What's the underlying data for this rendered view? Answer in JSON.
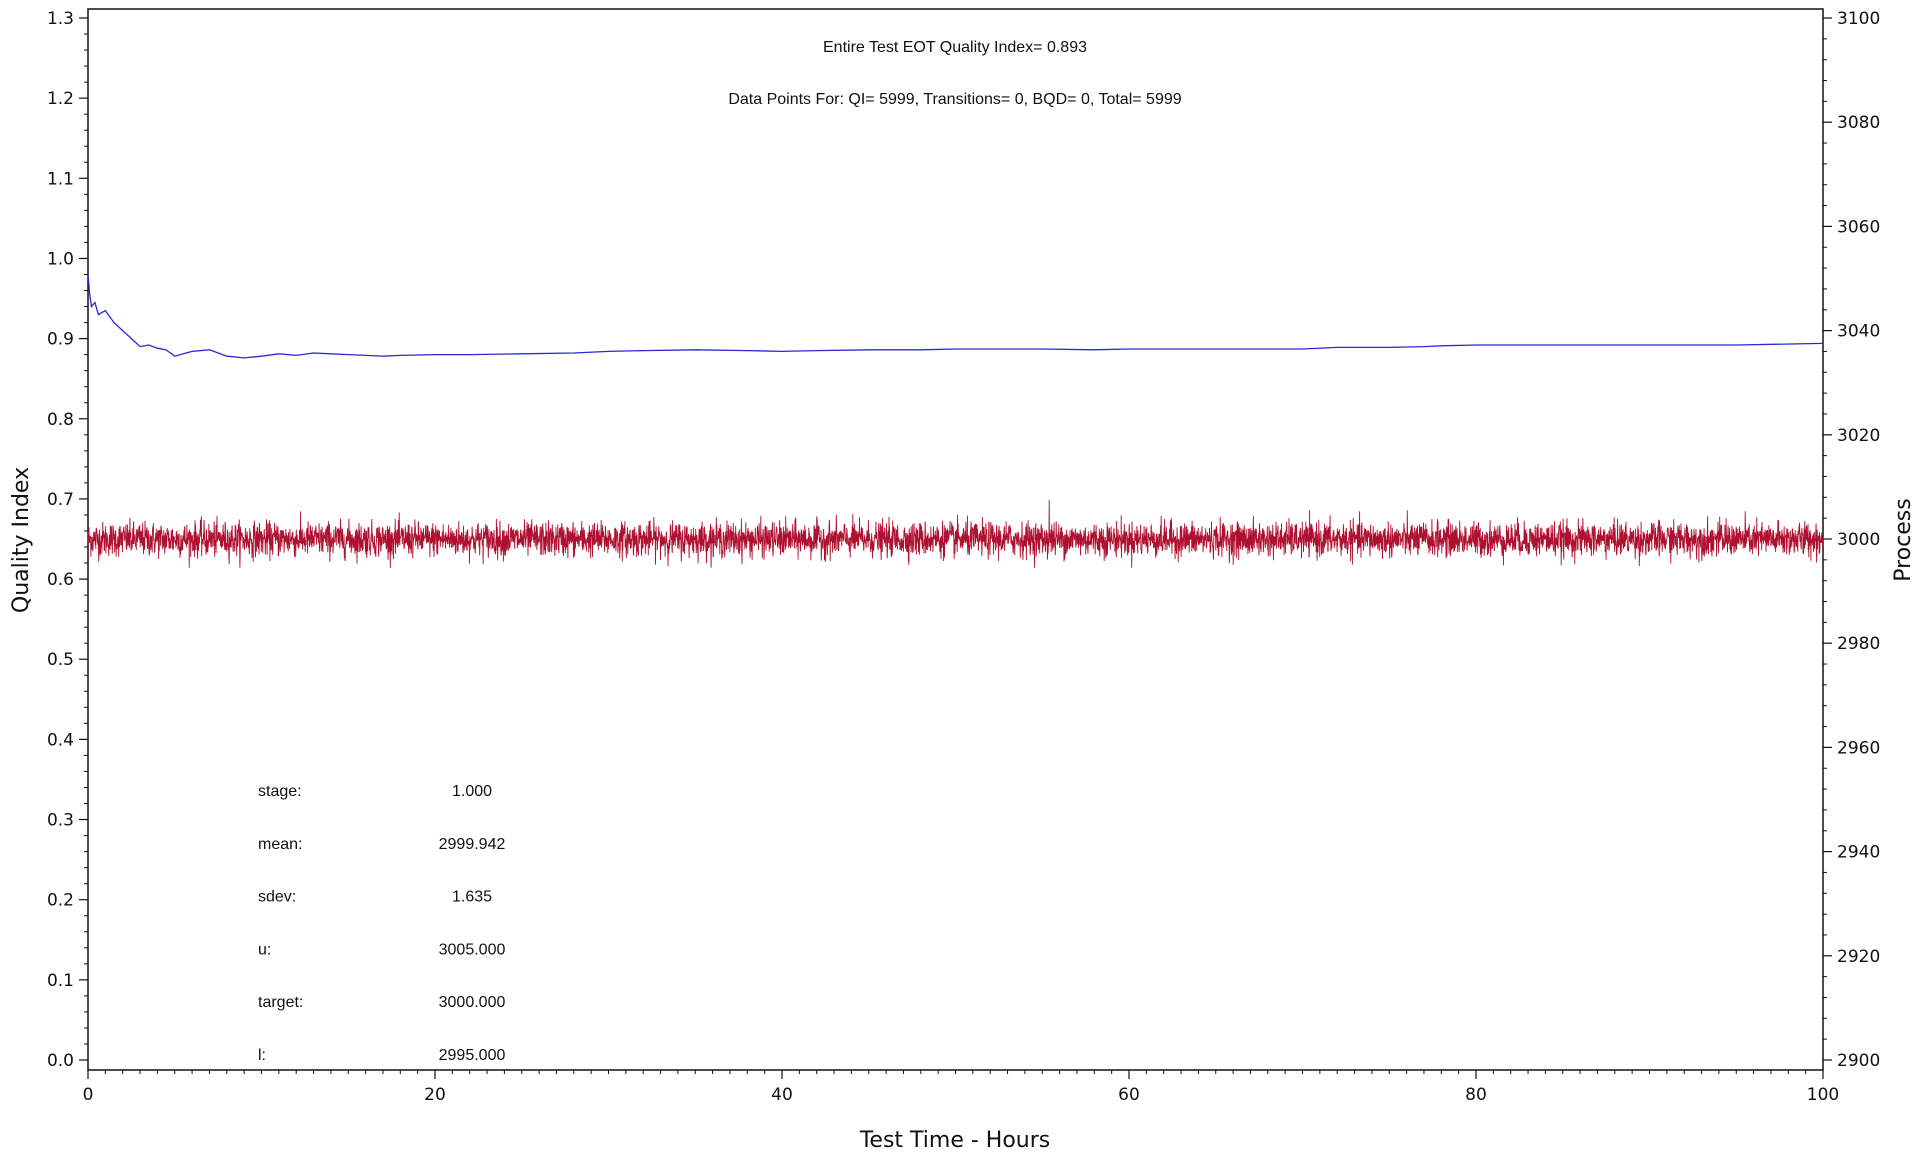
{
  "chart_data": {
    "type": "line",
    "xlabel": "Test Time - Hours",
    "ylabel_left": "Quality Index",
    "ylabel_right": "Process",
    "xlim": [
      0,
      100
    ],
    "ylim_left": [
      0.0,
      1.3
    ],
    "ylim_right": [
      2900,
      3100
    ],
    "x_ticks": [
      0,
      20,
      40,
      60,
      80,
      100
    ],
    "y_left_ticks": [
      "0.0",
      "0.1",
      "0.2",
      "0.3",
      "0.4",
      "0.5",
      "0.6",
      "0.7",
      "0.8",
      "0.9",
      "1.0",
      "1.1",
      "1.2",
      "1.3"
    ],
    "y_right_ticks": [
      2900,
      2920,
      2940,
      2960,
      2980,
      3000,
      3020,
      3040,
      3060,
      3080,
      3100
    ],
    "grid": false,
    "annotations": [
      "Entire Test EOT Quality Index=   0.893",
      "Data Points For: QI=  5999, Transitions=     0, BQD=     0, Total=  5999"
    ],
    "stats": [
      {
        "label": "stage:",
        "value": "1.000"
      },
      {
        "label": "mean:",
        "value": "2999.942"
      },
      {
        "label": "sdev:",
        "value": "1.635"
      },
      {
        "label": "u:",
        "value": "3005.000"
      },
      {
        "label": "target:",
        "value": "3000.000"
      },
      {
        "label": "l:",
        "value": "2995.000"
      }
    ],
    "series": [
      {
        "axis": "left",
        "color": "#2a2ad0",
        "x": [
          0,
          0.1,
          0.2,
          0.4,
          0.6,
          1,
          1.5,
          2,
          2.5,
          3,
          3.5,
          4,
          4.5,
          5,
          5.5,
          6,
          7,
          8,
          9,
          10,
          11,
          12,
          13,
          14,
          15,
          16,
          17,
          18,
          20,
          22,
          25,
          28,
          30,
          32,
          35,
          38,
          40,
          42,
          45,
          48,
          50,
          55,
          58,
          60,
          65,
          70,
          72,
          75,
          77,
          78,
          80,
          85,
          90,
          95,
          100
        ],
        "values": [
          0.98,
          0.955,
          0.94,
          0.945,
          0.93,
          0.935,
          0.92,
          0.91,
          0.9,
          0.89,
          0.892,
          0.888,
          0.886,
          0.878,
          0.881,
          0.884,
          0.886,
          0.878,
          0.876,
          0.878,
          0.881,
          0.879,
          0.882,
          0.881,
          0.88,
          0.879,
          0.878,
          0.879,
          0.88,
          0.88,
          0.881,
          0.882,
          0.884,
          0.885,
          0.886,
          0.885,
          0.884,
          0.885,
          0.886,
          0.886,
          0.887,
          0.887,
          0.886,
          0.887,
          0.887,
          0.887,
          0.889,
          0.889,
          0.89,
          0.891,
          0.892,
          0.892,
          0.892,
          0.892,
          0.894
        ]
      },
      {
        "axis": "right",
        "color": "#b01030",
        "points": 5999,
        "mean": 2999.942,
        "sdev": 1.635,
        "min": 2994.5,
        "max": 3007.5,
        "max_at_x": 55.4
      }
    ]
  }
}
